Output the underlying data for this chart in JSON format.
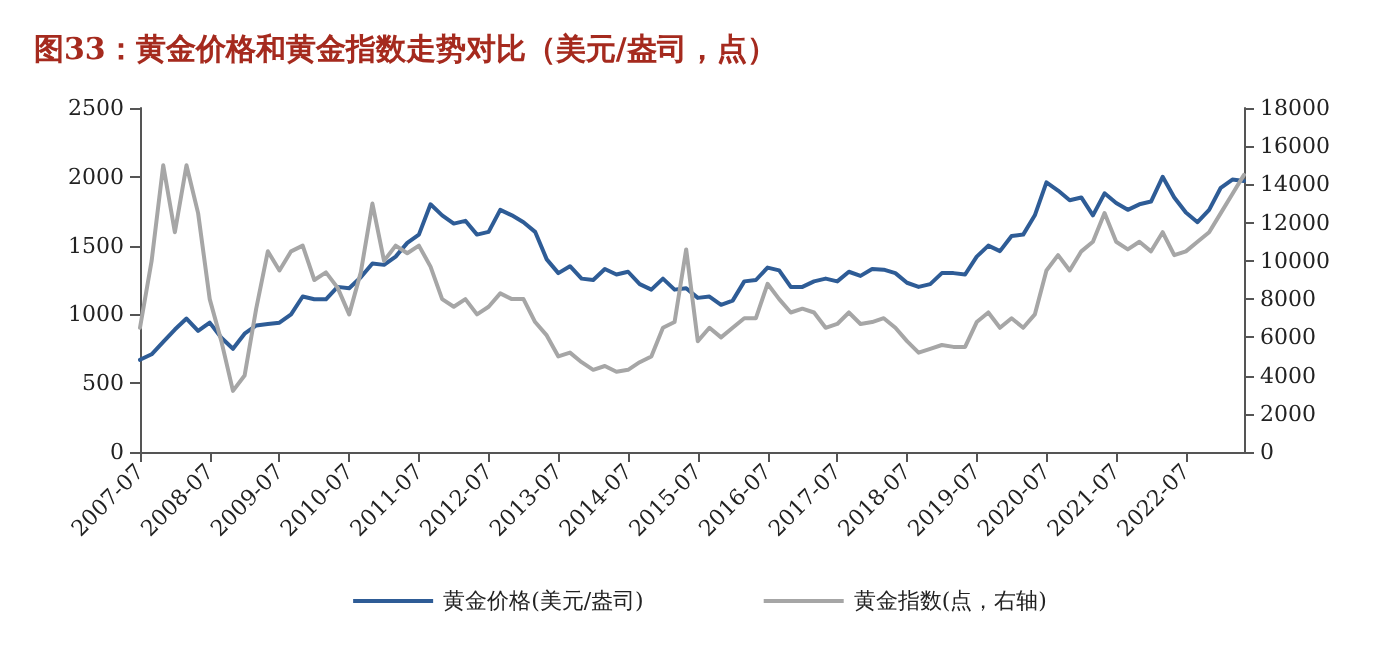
{
  "chart_data": {
    "type": "line",
    "title": "图33：黄金价格和黄金指数走势对比（美元/盎司，点）",
    "categories": [
      "2007-07",
      null,
      null,
      null,
      null,
      null,
      "2008-07",
      null,
      null,
      null,
      null,
      null,
      "2009-07",
      null,
      null,
      null,
      null,
      null,
      "2010-07",
      null,
      null,
      null,
      null,
      null,
      "2011-07",
      null,
      null,
      null,
      null,
      null,
      "2012-07",
      null,
      null,
      null,
      null,
      null,
      "2013-07",
      null,
      null,
      null,
      null,
      null,
      "2014-07",
      null,
      null,
      null,
      null,
      null,
      "2015-07",
      null,
      null,
      null,
      null,
      null,
      "2016-07",
      null,
      null,
      null,
      null,
      null,
      "2017-07",
      null,
      null,
      null,
      null,
      null,
      "2018-07",
      null,
      null,
      null,
      null,
      null,
      "2019-07",
      null,
      null,
      null,
      null,
      null,
      "2020-07",
      null,
      null,
      null,
      null,
      null,
      "2021-07",
      null,
      null,
      null,
      null,
      null,
      "2022-07",
      null,
      null,
      null,
      null,
      null
    ],
    "series": [
      {
        "name": "黄金价格(美元/盎司)",
        "color": "#2e5c96",
        "values": [
          670,
          710,
          800,
          890,
          970,
          880,
          940,
          830,
          750,
          860,
          920,
          930,
          940,
          1000,
          1130,
          1110,
          1110,
          1200,
          1190,
          1270,
          1370,
          1360,
          1420,
          1520,
          1580,
          1800,
          1720,
          1660,
          1680,
          1580,
          1600,
          1760,
          1720,
          1670,
          1600,
          1400,
          1300,
          1350,
          1260,
          1250,
          1330,
          1290,
          1310,
          1220,
          1180,
          1260,
          1180,
          1190,
          1120,
          1130,
          1070,
          1100,
          1240,
          1250,
          1340,
          1320,
          1200,
          1200,
          1240,
          1260,
          1240,
          1310,
          1280,
          1330,
          1325,
          1300,
          1230,
          1200,
          1220,
          1300,
          1300,
          1290,
          1420,
          1500,
          1460,
          1570,
          1580,
          1720,
          1960,
          1900,
          1830,
          1850,
          1720,
          1880,
          1810,
          1760,
          1800,
          1820,
          2000,
          1850,
          1740,
          1670,
          1760,
          1920,
          1980,
          1970
        ]
      },
      {
        "name": "黄金指数(点，右轴)",
        "color": "#a6a6a6",
        "axis": "y2",
        "values": [
          6500,
          10000,
          15000,
          11500,
          15000,
          12500,
          8000,
          5800,
          3200,
          4000,
          7500,
          10500,
          9500,
          10500,
          10800,
          9000,
          9400,
          8600,
          7200,
          9400,
          13000,
          10000,
          10800,
          10400,
          10800,
          9700,
          8000,
          7600,
          8000,
          7200,
          7600,
          8300,
          8000,
          8000,
          6800,
          6100,
          5000,
          5200,
          4700,
          4300,
          4500,
          4200,
          4300,
          4700,
          5000,
          6500,
          6800,
          10600,
          5800,
          6500,
          6000,
          6500,
          7000,
          7000,
          8800,
          8000,
          7300,
          7500,
          7300,
          6500,
          6700,
          7300,
          6700,
          6800,
          7000,
          6500,
          5800,
          5200,
          5400,
          5600,
          5500,
          5500,
          6800,
          7300,
          6500,
          7000,
          6500,
          7200,
          9500,
          10300,
          9500,
          10500,
          11000,
          12500,
          11000,
          10600,
          11000,
          10500,
          11500,
          10300,
          10500,
          11000,
          11500,
          12500,
          13500,
          14500
        ]
      }
    ],
    "ylim": [
      0,
      2500
    ],
    "yticks": [
      0,
      500,
      1000,
      1500,
      2000,
      2500
    ],
    "y2lim": [
      0,
      18000
    ],
    "y2ticks": [
      0,
      2000,
      4000,
      6000,
      8000,
      10000,
      12000,
      14000,
      16000,
      18000
    ],
    "grid": false,
    "legend": "bottom",
    "marker": "none",
    "line_style": "solid"
  }
}
